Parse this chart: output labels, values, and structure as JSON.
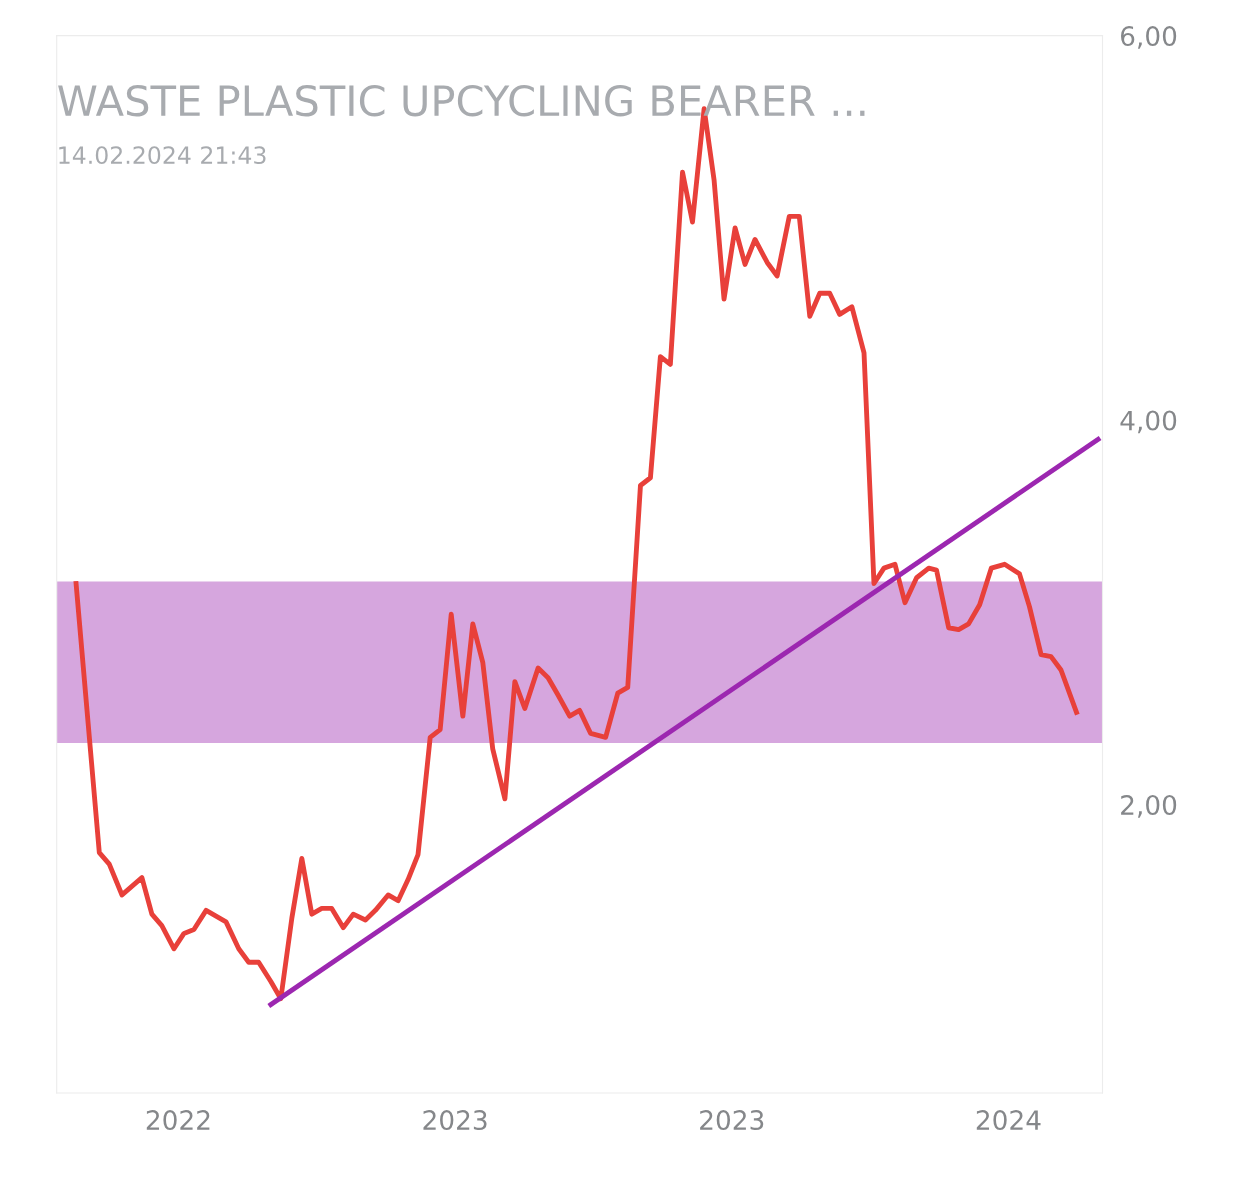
{
  "chart_data": {
    "type": "line",
    "title": "WASTE PLASTIC UPCYCLING BEARER ...",
    "subtitle": "14.02.2024 21:43",
    "xlim": [
      2022.28,
      2024.17
    ],
    "xticks": [
      {
        "value": 2022.5,
        "label": "2022"
      },
      {
        "value": 2023.0,
        "label": "2023"
      },
      {
        "value": 2023.5,
        "label": "2023"
      },
      {
        "value": 2024.0,
        "label": "2024"
      }
    ],
    "ylim": [
      0.5,
      6.0
    ],
    "yticks": [
      {
        "value": 2,
        "label": "2,00"
      },
      {
        "value": 4,
        "label": "4,00"
      },
      {
        "value": 6,
        "label": "6,00"
      }
    ],
    "grid": false,
    "legend": false,
    "marker": "none",
    "line_style": "solid",
    "bands": [
      {
        "axis": "y",
        "from": 2.32,
        "to": 3.16,
        "color": "#d6a6de"
      }
    ],
    "series": [
      {
        "color": "#e8403a",
        "x": [
          2022.315,
          2022.357,
          2022.375,
          2022.398,
          2022.434,
          2022.452,
          2022.47,
          2022.492,
          2022.51,
          2022.528,
          2022.55,
          2022.586,
          2022.609,
          2022.627,
          2022.645,
          2022.667,
          2022.685,
          2022.705,
          2022.723,
          2022.741,
          2022.759,
          2022.777,
          2022.798,
          2022.816,
          2022.838,
          2022.856,
          2022.879,
          2022.897,
          2022.915,
          2022.933,
          2022.955,
          2022.973,
          2022.993,
          2023.014,
          2023.032,
          2023.05,
          2023.068,
          2023.09,
          2023.108,
          2023.126,
          2023.15,
          2023.168,
          2023.186,
          2023.207,
          2023.225,
          2023.245,
          2023.272,
          2023.294,
          2023.312,
          2023.335,
          2023.353,
          2023.371,
          2023.389,
          2023.411,
          2023.429,
          2023.45,
          2023.468,
          2023.486,
          2023.506,
          2023.524,
          2023.542,
          2023.564,
          2023.582,
          2023.604,
          2023.622,
          2023.641,
          2023.659,
          2023.677,
          2023.695,
          2023.717,
          2023.739,
          2023.757,
          2023.775,
          2023.795,
          2023.813,
          2023.834,
          2023.856,
          2023.87,
          2023.892,
          2023.91,
          2023.928,
          2023.948,
          2023.969,
          2023.993,
          2024.02,
          2024.038,
          2024.059,
          2024.077,
          2024.095,
          2024.123
        ],
        "values": [
          3.15,
          1.75,
          1.69,
          1.53,
          1.62,
          1.43,
          1.37,
          1.25,
          1.33,
          1.35,
          1.45,
          1.39,
          1.25,
          1.18,
          1.18,
          1.08,
          0.99,
          1.41,
          1.72,
          1.43,
          1.46,
          1.46,
          1.36,
          1.43,
          1.4,
          1.45,
          1.53,
          1.5,
          1.61,
          1.74,
          2.35,
          2.39,
          2.99,
          2.46,
          2.94,
          2.74,
          2.29,
          2.03,
          2.64,
          2.5,
          2.71,
          2.66,
          2.57,
          2.46,
          2.49,
          2.37,
          2.35,
          2.58,
          2.61,
          3.66,
          3.7,
          4.33,
          4.29,
          5.29,
          5.03,
          5.62,
          5.25,
          4.63,
          5.0,
          4.81,
          4.94,
          4.82,
          4.75,
          5.06,
          5.06,
          4.54,
          4.66,
          4.66,
          4.55,
          4.59,
          4.35,
          3.15,
          3.23,
          3.25,
          3.05,
          3.18,
          3.23,
          3.22,
          2.92,
          2.91,
          2.94,
          3.04,
          3.23,
          3.25,
          3.2,
          3.03,
          2.78,
          2.77,
          2.7,
          2.48
        ]
      },
      {
        "type": "line",
        "color": "#9c27b0",
        "x": [
          2022.667,
          2024.162
        ],
        "values": [
          0.96,
          3.9
        ]
      }
    ]
  }
}
